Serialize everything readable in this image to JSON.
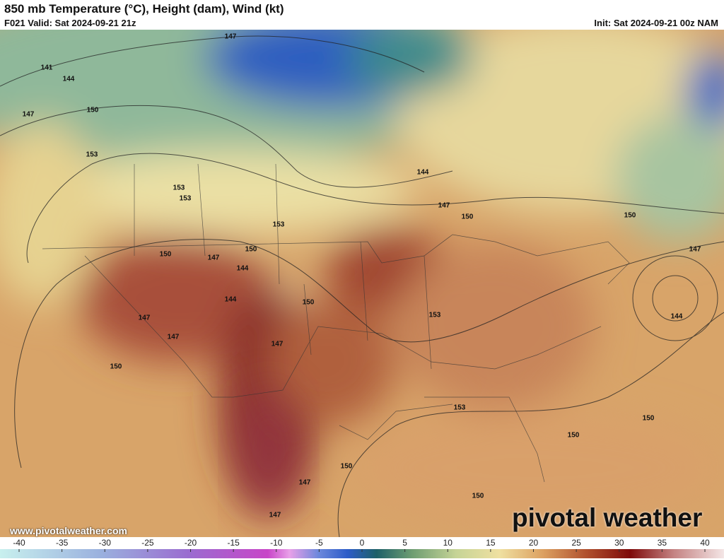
{
  "header": {
    "title": "850 mb Temperature (°C), Height (dam), Wind (kt)",
    "valid": "F021 Valid: Sat 2024-09-21 21z",
    "init": "Init: Sat 2024-09-21 00z NAM"
  },
  "contour_labels": [
    "147",
    "141",
    "144",
    "147",
    "150",
    "153",
    "153",
    "153",
    "144",
    "147",
    "150",
    "153",
    "150",
    "150",
    "147",
    "144",
    "144",
    "150",
    "147",
    "147",
    "150",
    "147",
    "153",
    "153",
    "150",
    "147",
    "144",
    "150",
    "150",
    "150",
    "147",
    "150",
    "147"
  ],
  "colorbar": {
    "ticks": [
      -40,
      -35,
      -30,
      -25,
      -20,
      -15,
      -10,
      -5,
      0,
      5,
      10,
      15,
      20,
      25,
      30,
      35,
      40
    ]
  },
  "footer": {
    "website": "www.pivotalweather.com",
    "watermark": "pivotal weather"
  }
}
